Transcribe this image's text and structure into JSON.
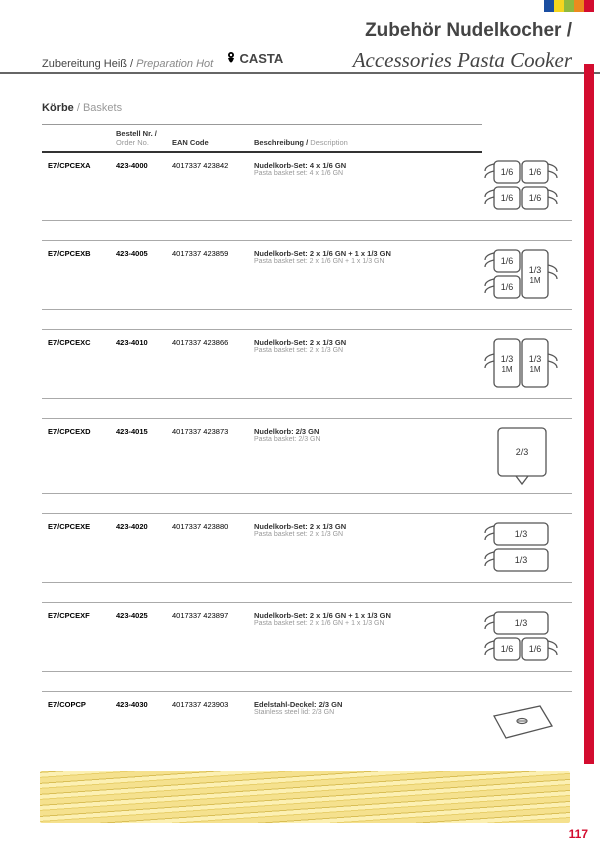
{
  "tabs": [
    "#1a4ea1",
    "#f4d61f",
    "#8fb93e",
    "#ec8a1e",
    "#d30c2f"
  ],
  "header": {
    "title_de": "Zubehör Nudelkocher",
    "title_sep": " / ",
    "sub_de": "Zubereitung Heiß",
    "sub_sep": " / ",
    "sub_en": "Preparation Hot",
    "title_en": "Accessories Pasta Cooker",
    "logo": "CASTA"
  },
  "section": {
    "title_de": "Körbe",
    "sep": " / ",
    "title_en": "Baskets"
  },
  "columns": {
    "order_de": "Bestell Nr.",
    "order_en": "Order No.",
    "ean": "EAN Code",
    "desc_de": "Beschreibung",
    "desc_en": "Description"
  },
  "rows": [
    {
      "model": "E7/CPCEXA",
      "order": "423-4000",
      "ean": "4017337 423842",
      "de": "Nudelkorb-Set: 4 x 1/6 GN",
      "en": "Pasta basket set: 4 x 1/6 GN",
      "diagram": "A"
    },
    {
      "model": "E7/CPCEXB",
      "order": "423-4005",
      "ean": "4017337 423859",
      "de": "Nudelkorb-Set: 2 x 1/6 GN + 1 x 1/3 GN",
      "en": "Pasta basket set: 2 x 1/6 GN + 1 x 1/3 GN",
      "diagram": "B"
    },
    {
      "model": "E7/CPCEXC",
      "order": "423-4010",
      "ean": "4017337 423866",
      "de": "Nudelkorb-Set: 2 x 1/3 GN",
      "en": "Pasta basket set: 2 x 1/3 GN",
      "diagram": "C"
    },
    {
      "model": "E7/CPCEXD",
      "order": "423-4015",
      "ean": "4017337 423873",
      "de": "Nudelkorb: 2/3 GN",
      "en": "Pasta basket: 2/3 GN",
      "diagram": "D"
    },
    {
      "model": "E7/CPCEXE",
      "order": "423-4020",
      "ean": "4017337 423880",
      "de": "Nudelkorb-Set: 2 x 1/3 GN",
      "en": "Pasta basket set: 2 x 1/3 GN",
      "diagram": "E"
    },
    {
      "model": "E7/CPCEXF",
      "order": "423-4025",
      "ean": "4017337 423897",
      "de": "Nudelkorb-Set: 2 x 1/6 GN + 1 x 1/3 GN",
      "en": "Pasta basket set: 2 x 1/6 GN + 1 x 1/3 GN",
      "diagram": "F"
    },
    {
      "model": "E7/COPCP",
      "order": "423-4030",
      "ean": "4017337 423903",
      "de": "Edelstahl-Deckel: 2/3 GN",
      "en": "Stainless steel lid: 2/3 GN",
      "diagram": "G"
    }
  ],
  "page": "117"
}
